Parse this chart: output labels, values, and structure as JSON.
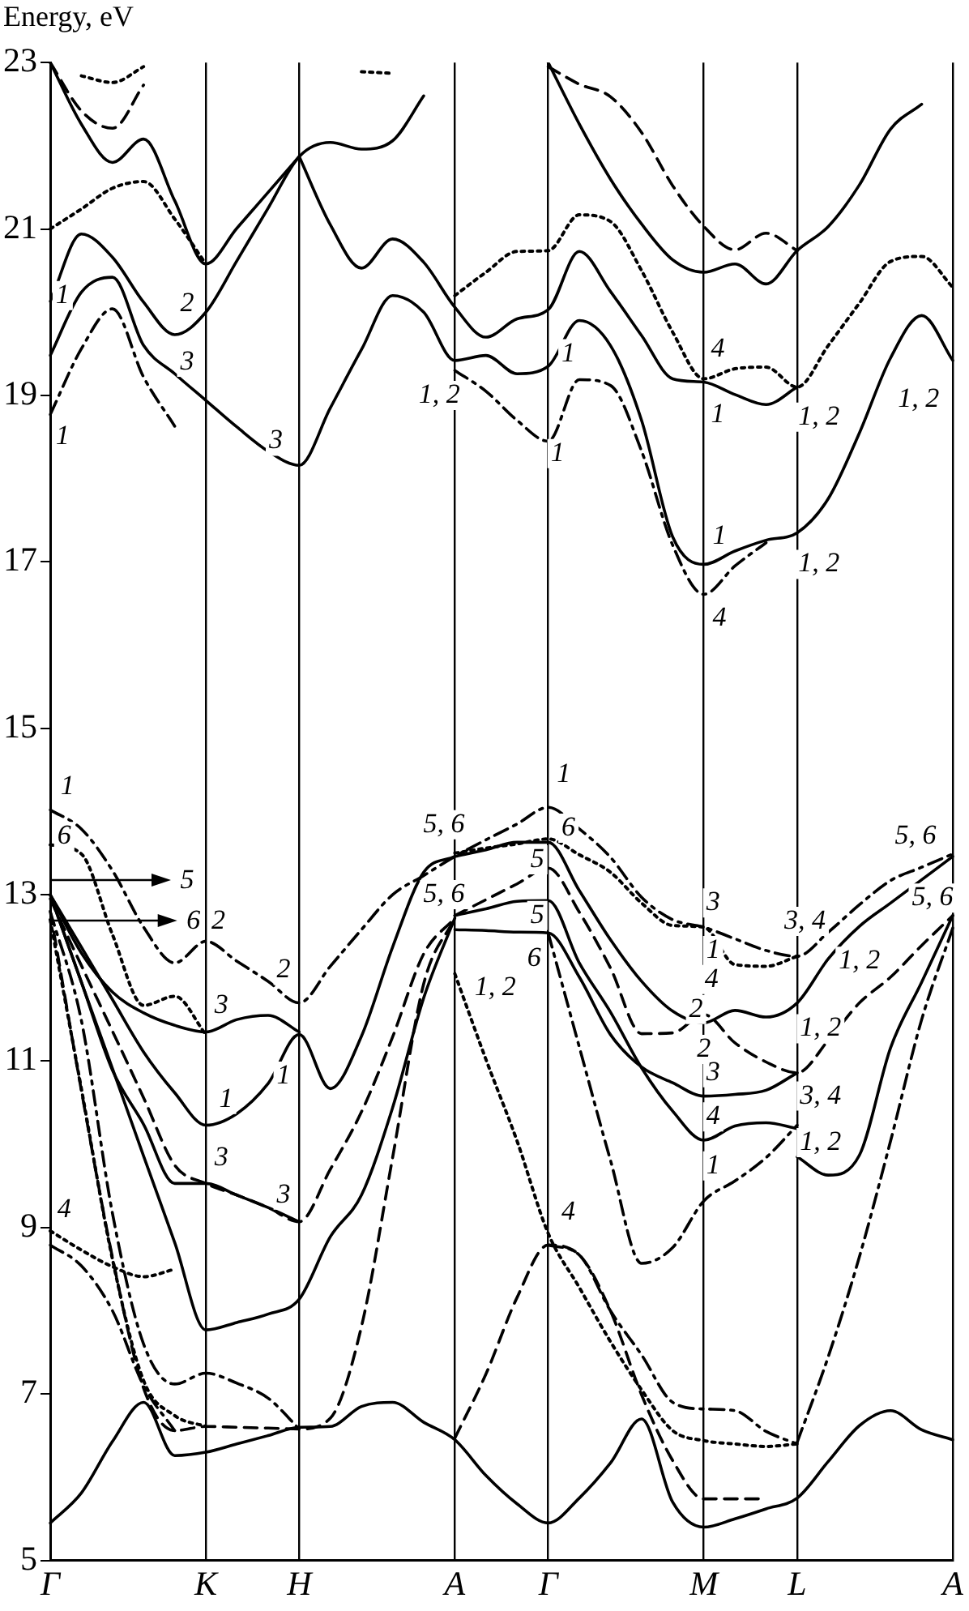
{
  "chart_data": {
    "type": "line",
    "ylabel": "Energy, eV",
    "ylim": [
      5,
      23
    ],
    "categories": [
      "Γ",
      null,
      null,
      null,
      null,
      "K",
      null,
      null,
      "H",
      null,
      null,
      null,
      null,
      "A",
      null,
      null,
      "Γ",
      null,
      null,
      null,
      null,
      "M",
      null,
      null,
      "L",
      null,
      null,
      null,
      null,
      "A"
    ],
    "yticks": [
      5,
      7,
      9,
      11,
      13,
      15,
      17,
      19,
      21,
      23
    ],
    "grid": "x",
    "legend": false,
    "marker": "none",
    "series": [
      {
        "color": "#000000",
        "line_style": "solid",
        "values": [
          5.45,
          5.81,
          6.43,
          6.9,
          6.26,
          6.3,
          6.4,
          6.5,
          6.6,
          6.61,
          6.85,
          6.9,
          6.66,
          6.45,
          6.02,
          5.68,
          5.45,
          5.75,
          6.17,
          6.7,
          5.7,
          5.4,
          5.5,
          5.62,
          5.75,
          6.19,
          6.62,
          6.8,
          6.57,
          6.45
        ]
      },
      {
        "color": "#000000",
        "line_style": "solid",
        "values": [
          20.13,
          20.94,
          20.66,
          20.12,
          19.73,
          20.0,
          20.62,
          21.25,
          21.87,
          22.04,
          21.96,
          22.06,
          22.6,
          null,
          null,
          null,
          null,
          null,
          null,
          null,
          null,
          null,
          null,
          null,
          null,
          null,
          null,
          null,
          null,
          null
        ]
      },
      {
        "color": "#000000",
        "line_style": "solid",
        "values": [
          19.48,
          20.24,
          20.42,
          19.6,
          19.26,
          18.94,
          18.62,
          18.33,
          18.16,
          18.85,
          19.55,
          20.2,
          20.0,
          19.42,
          19.48,
          19.26,
          19.35,
          19.9,
          19.6,
          18.7,
          17.3,
          16.97,
          17.13,
          17.26,
          17.35,
          17.76,
          18.55,
          19.45,
          19.96,
          19.42
        ]
      },
      {
        "color": "#000000",
        "line_style": "solid",
        "values": [
          null,
          null,
          null,
          null,
          null,
          null,
          null,
          null,
          21.87,
          21.05,
          20.53,
          20.88,
          20.6,
          20.06,
          19.7,
          19.92,
          20.03,
          20.73,
          20.25,
          19.72,
          19.2,
          19.16,
          19.01,
          18.89,
          19.1,
          null,
          null,
          null,
          null,
          null
        ]
      },
      {
        "color": "#000000",
        "line_style": "solid",
        "values": [
          23,
          22.26,
          21.8,
          22.08,
          21.34,
          20.58,
          21.01,
          21.44,
          21.87,
          null,
          null,
          null,
          null,
          null,
          null,
          null,
          null,
          null,
          null,
          null,
          null,
          null,
          null,
          null,
          null,
          null,
          null,
          null,
          null,
          null
        ]
      },
      {
        "color": "#000000",
        "line_style": "solid",
        "values": [
          null,
          null,
          null,
          null,
          null,
          null,
          null,
          null,
          null,
          null,
          null,
          null,
          null,
          null,
          null,
          null,
          23,
          22.26,
          21.6,
          21.06,
          20.63,
          20.48,
          20.58,
          20.34,
          20.74,
          21.03,
          21.53,
          22.2,
          22.5,
          null
        ]
      },
      {
        "color": "#000000",
        "line_style": "dashed",
        "values": [
          23,
          22.42,
          22.21,
          22.73,
          null,
          null,
          null,
          null,
          null,
          null,
          null,
          null,
          null,
          null,
          null,
          null,
          null,
          null,
          null,
          null,
          null,
          null,
          null,
          null,
          null,
          null,
          null,
          null,
          null,
          null
        ]
      },
      {
        "color": "#000000",
        "line_style": "dashed",
        "values": [
          null,
          null,
          null,
          null,
          null,
          null,
          null,
          null,
          null,
          null,
          null,
          null,
          null,
          null,
          null,
          null,
          22.95,
          22.74,
          22.59,
          22.16,
          21.52,
          21.03,
          20.75,
          20.95,
          20.74,
          null,
          null,
          null,
          null,
          null
        ]
      },
      {
        "color": "#000000",
        "line_style": "dotted",
        "values": [
          null,
          22.84,
          22.76,
          22.95,
          null,
          null,
          null,
          null,
          null,
          null,
          null,
          null,
          null,
          null,
          null,
          null,
          null,
          null,
          null,
          null,
          null,
          null,
          null,
          null,
          null,
          null,
          null,
          null,
          null,
          null
        ]
      },
      {
        "color": "#000000",
        "line_style": "dotted",
        "values": [
          null,
          null,
          null,
          null,
          null,
          null,
          null,
          null,
          null,
          null,
          22.89,
          22.87,
          null,
          null,
          null,
          null,
          null,
          null,
          null,
          null,
          null,
          null,
          null,
          null,
          null,
          null,
          null,
          null,
          null,
          null
        ]
      },
      {
        "color": "#000000",
        "line_style": "dotted",
        "values": [
          21.0,
          21.24,
          21.49,
          21.57,
          21.12,
          20.58,
          null,
          null,
          null,
          null,
          null,
          null,
          null,
          null,
          null,
          null,
          null,
          null,
          null,
          null,
          null,
          null,
          null,
          null,
          null,
          null,
          null,
          null,
          null,
          null
        ]
      },
      {
        "color": "#000000",
        "line_style": "dotted",
        "values": [
          null,
          null,
          null,
          null,
          null,
          null,
          null,
          null,
          null,
          null,
          null,
          null,
          null,
          20.2,
          20.48,
          20.73,
          20.74,
          21.17,
          21.09,
          20.5,
          19.76,
          19.2,
          19.32,
          19.34,
          19.1,
          19.6,
          20.11,
          20.61,
          20.67,
          20.3
        ]
      },
      {
        "color": "#000000",
        "line_style": "dashdot",
        "values": [
          18.77,
          19.56,
          20.04,
          19.22,
          18.63,
          null,
          null,
          null,
          null,
          null,
          null,
          null,
          null,
          null,
          null,
          null,
          null,
          null,
          null,
          null,
          null,
          null,
          null,
          null,
          null,
          null,
          null,
          null,
          null,
          null
        ]
      },
      {
        "color": "#000000",
        "line_style": "dashdot",
        "values": [
          null,
          null,
          null,
          null,
          null,
          null,
          null,
          null,
          null,
          null,
          null,
          null,
          null,
          19.3,
          19.05,
          18.7,
          18.45,
          19.19,
          19.12,
          18.33,
          17.2,
          16.61,
          16.95,
          17.23,
          null,
          null,
          null,
          null,
          null,
          null
        ]
      },
      {
        "color": "#000000",
        "line_style": "dashdot",
        "values": [
          14.02,
          13.79,
          13.29,
          12.61,
          12.18,
          12.44,
          12.2,
          11.96,
          11.7,
          12.14,
          12.58,
          13.0,
          13.23,
          13.46,
          13.66,
          13.85,
          14.05,
          13.79,
          13.45,
          12.97,
          12.7,
          12.61,
          12.47,
          12.33,
          12.26,
          12.55,
          12.88,
          13.17,
          13.33,
          13.49
        ]
      },
      {
        "color": "#000000",
        "line_style": "dotted",
        "values": [
          13.6,
          13.49,
          12.52,
          11.67,
          11.78,
          11.32,
          null,
          null,
          null,
          null,
          null,
          null,
          null,
          null,
          null,
          null,
          null,
          null,
          null,
          null,
          null,
          null,
          null,
          null,
          null,
          null,
          null,
          null,
          null,
          null
        ]
      },
      {
        "color": "#000000",
        "line_style": "dotted",
        "values": [
          null,
          null,
          null,
          null,
          null,
          null,
          null,
          null,
          null,
          null,
          null,
          null,
          null,
          13.5,
          13.56,
          13.61,
          13.67,
          13.48,
          13.27,
          12.9,
          12.63,
          12.61,
          12.16,
          12.14,
          12.26,
          null,
          null,
          null,
          null,
          null
        ]
      },
      {
        "color": "#000000",
        "line_style": "solid",
        "values": [
          13.0,
          12.3,
          11.83,
          11.58,
          11.43,
          11.35,
          11.5,
          11.55,
          11.35,
          null,
          null,
          null,
          null,
          null,
          null,
          null,
          null,
          null,
          null,
          null,
          null,
          null,
          null,
          null,
          null,
          null,
          null,
          null,
          null,
          null
        ]
      },
      {
        "color": "#000000",
        "line_style": "solid",
        "values": [
          13.0,
          12.37,
          11.74,
          11.11,
          10.62,
          10.23,
          10.37,
          10.73,
          11.32,
          10.67,
          11.3,
          12.37,
          13.27,
          13.46,
          null,
          null,
          null,
          null,
          null,
          null,
          null,
          null,
          null,
          null,
          null,
          null,
          null,
          null,
          null,
          null
        ]
      },
      {
        "color": "#000000",
        "line_style": "dashed",
        "values": [
          12.95,
          12.15,
          11.36,
          10.56,
          9.75,
          9.53,
          9.39,
          9.24,
          9.07,
          9.7,
          10.39,
          11.29,
          12.29,
          12.72,
          null,
          null,
          null,
          null,
          null,
          null,
          null,
          null,
          null,
          null,
          null,
          null,
          null,
          null,
          null,
          null
        ]
      },
      {
        "color": "#000000",
        "line_style": "solid",
        "values": [
          13.0,
          11.95,
          10.89,
          10.24,
          9.53,
          9.53,
          9.39,
          9.24,
          9.07,
          null,
          null,
          null,
          null,
          null,
          null,
          null,
          null,
          null,
          null,
          null,
          null,
          null,
          null,
          null,
          null,
          null,
          null,
          null,
          null,
          null
        ]
      },
      {
        "color": "#000000",
        "line_style": "solid",
        "values": [
          13.0,
          11.95,
          10.91,
          9.86,
          8.82,
          7.77,
          7.86,
          7.96,
          8.14,
          8.89,
          9.39,
          10.44,
          11.76,
          12.72,
          null,
          null,
          null,
          null,
          null,
          null,
          null,
          null,
          null,
          null,
          null,
          null,
          null,
          null,
          null,
          null
        ]
      },
      {
        "color": "#000000",
        "line_style": "solid",
        "values": [
          null,
          null,
          null,
          null,
          null,
          null,
          null,
          null,
          null,
          null,
          null,
          null,
          null,
          12.75,
          12.83,
          12.92,
          12.93,
          12.18,
          11.59,
          10.92,
          10.4,
          10.05,
          10.22,
          10.26,
          10.19,
          null,
          null,
          null,
          null,
          null
        ]
      },
      {
        "color": "#000000",
        "line_style": "solid",
        "values": [
          null,
          null,
          null,
          null,
          null,
          null,
          null,
          null,
          null,
          null,
          null,
          null,
          null,
          null,
          null,
          null,
          null,
          null,
          null,
          null,
          null,
          null,
          null,
          null,
          9.85,
          9.63,
          9.87,
          11.16,
          11.95,
          12.75
        ]
      },
      {
        "color": "#000000",
        "line_style": "solid",
        "values": [
          null,
          null,
          null,
          null,
          null,
          null,
          null,
          null,
          null,
          null,
          null,
          null,
          null,
          12.58,
          12.57,
          12.55,
          12.54,
          12.01,
          11.32,
          10.93,
          10.74,
          10.58,
          10.6,
          10.65,
          10.86,
          null,
          null,
          null,
          null,
          null
        ]
      },
      {
        "color": "#000000",
        "line_style": "solid",
        "values": [
          null,
          null,
          null,
          null,
          null,
          null,
          null,
          null,
          null,
          null,
          null,
          null,
          null,
          13.46,
          13.54,
          13.63,
          13.63,
          13.05,
          12.46,
          11.96,
          11.6,
          11.46,
          11.61,
          11.53,
          11.7,
          12.23,
          12.62,
          12.9,
          13.18,
          13.46
        ]
      },
      {
        "color": "#000000",
        "line_style": "dashed",
        "values": [
          null,
          null,
          null,
          null,
          null,
          null,
          null,
          null,
          null,
          null,
          null,
          null,
          null,
          12.75,
          12.94,
          13.13,
          13.32,
          12.79,
          12.12,
          11.33,
          11.34,
          11.56,
          11.22,
          10.99,
          10.86,
          11.25,
          11.7,
          12.01,
          12.39,
          12.75
        ]
      },
      {
        "color": "#000000",
        "line_style": "dotted",
        "values": [
          null,
          null,
          null,
          null,
          null,
          null,
          null,
          null,
          null,
          null,
          null,
          null,
          null,
          12.05,
          11.02,
          10.04,
          8.93,
          8.28,
          7.63,
          7.05,
          6.56,
          6.44,
          6.4,
          6.37,
          6.4,
          null,
          null,
          null,
          null,
          null
        ]
      },
      {
        "color": "#000000",
        "line_style": "dashdot",
        "values": [
          null,
          null,
          null,
          null,
          null,
          null,
          null,
          null,
          null,
          null,
          null,
          null,
          null,
          null,
          null,
          null,
          null,
          null,
          null,
          null,
          null,
          null,
          null,
          null,
          6.42,
          7.45,
          8.65,
          10.04,
          11.5,
          12.6
        ]
      },
      {
        "color": "#000000",
        "line_style": "dashed",
        "values": [
          null,
          null,
          null,
          null,
          null,
          null,
          null,
          null,
          null,
          null,
          null,
          null,
          null,
          6.47,
          7.24,
          8.16,
          8.79,
          8.67,
          8.0,
          6.99,
          6.2,
          5.74,
          5.74,
          5.74,
          null,
          null,
          null,
          null,
          null,
          null
        ]
      },
      {
        "color": "#000000",
        "line_style": "dashdot",
        "values": [
          null,
          null,
          null,
          null,
          null,
          null,
          null,
          null,
          null,
          null,
          null,
          null,
          null,
          null,
          null,
          null,
          8.79,
          8.67,
          8.0,
          7.47,
          6.9,
          6.82,
          6.8,
          6.55,
          6.4,
          null,
          null,
          null,
          null,
          null
        ]
      },
      {
        "color": "#000000",
        "line_style": "dashdot",
        "values": [
          null,
          null,
          null,
          null,
          null,
          null,
          null,
          null,
          null,
          null,
          null,
          null,
          null,
          null,
          null,
          null,
          12.54,
          11.17,
          9.81,
          8.57,
          8.76,
          9.32,
          9.56,
          9.84,
          10.23,
          null,
          null,
          null,
          null,
          null
        ]
      },
      {
        "color": "#000000",
        "line_style": "dotted",
        "values": [
          8.96,
          8.73,
          8.53,
          8.41,
          8.5,
          null,
          null,
          null,
          null,
          null,
          null,
          null,
          null,
          null,
          null,
          null,
          null,
          null,
          null,
          null,
          null,
          null,
          null,
          null,
          null,
          null,
          null,
          null,
          null,
          null
        ]
      },
      {
        "color": "#000000",
        "line_style": "dashdot",
        "values": [
          8.79,
          8.54,
          8.0,
          7.1,
          6.56,
          null,
          null,
          null,
          null,
          null,
          null,
          null,
          null,
          null,
          null,
          null,
          null,
          null,
          null,
          null,
          null,
          null,
          null,
          null,
          null,
          null,
          null,
          null,
          null,
          null
        ]
      },
      {
        "color": "#000000",
        "line_style": "dashed",
        "values": [
          12.8,
          10.65,
          8.64,
          7.07,
          6.56,
          6.61,
          6.6,
          6.59,
          6.58,
          6.71,
          7.81,
          9.84,
          11.93,
          12.72,
          null,
          null,
          null,
          null,
          null,
          null,
          null,
          null,
          null,
          null,
          null,
          null,
          null,
          null,
          null,
          null
        ]
      },
      {
        "color": "#000000",
        "line_style": "dashdot",
        "values": [
          12.8,
          11.49,
          9.17,
          7.6,
          7.12,
          7.25,
          7.13,
          6.95,
          6.58,
          null,
          null,
          null,
          null,
          null,
          null,
          null,
          null,
          null,
          null,
          null,
          null,
          null,
          null,
          null,
          null,
          null,
          null,
          null,
          null,
          null
        ]
      },
      {
        "color": "#000000",
        "line_style": "dotted",
        "values": [
          12.7,
          10.67,
          8.62,
          7.16,
          6.74,
          6.61,
          null,
          null,
          null,
          null,
          null,
          null,
          null,
          null,
          null,
          null,
          null,
          null,
          null,
          null,
          null,
          null,
          null,
          null,
          null,
          null,
          null,
          null,
          null,
          null
        ]
      }
    ],
    "annotations": [
      "1",
      "1",
      "2",
      "3",
      "3",
      "1, 2",
      "1",
      "1",
      "4",
      "1",
      "1, 2",
      "1",
      "4",
      "1, 2",
      "1, 2",
      "1",
      "6",
      "5",
      "6",
      "2",
      "2",
      "3",
      "1",
      "1",
      "3",
      "3",
      "4",
      "5, 6",
      "5, 6",
      "1, 2",
      "1",
      "6",
      "5",
      "5",
      "6",
      "4",
      "3",
      "1",
      "4",
      "2",
      "2",
      "3",
      "4",
      "1",
      "3, 4",
      "1, 2",
      "3, 4",
      "1, 2",
      "5, 6",
      "5, 6",
      "1, 2"
    ]
  }
}
